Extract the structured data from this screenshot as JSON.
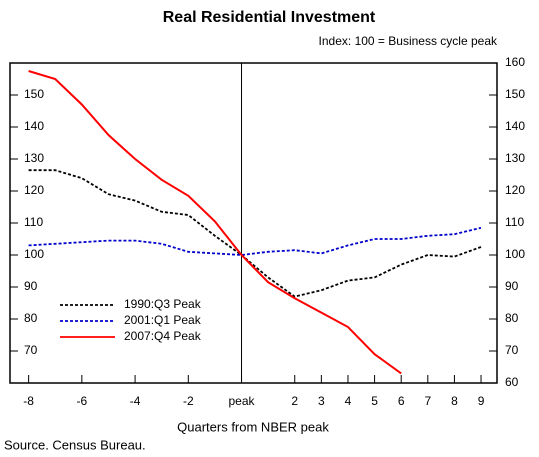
{
  "chart_data": {
    "type": "line",
    "title": "Real Residential Investment",
    "subtitle": "Index: 100 = Business cycle peak",
    "x_label": "Quarters from NBER peak",
    "source": "Source. Census Bureau.",
    "x": [
      -8,
      -7,
      -6,
      -5,
      -4,
      -3,
      -2,
      -1,
      0,
      1,
      2,
      3,
      4,
      5,
      6,
      7,
      8,
      9
    ],
    "series": [
      {
        "name": "1990:Q3 Peak",
        "color": "#000000",
        "linestyle": "dotted",
        "values": [
          126.5,
          126.5,
          124,
          119,
          117,
          113.5,
          112.5,
          106,
          100,
          93,
          87,
          89,
          92,
          93,
          97,
          100,
          99.5,
          102.5
        ]
      },
      {
        "name": "2001:Q1 Peak",
        "color": "#0000cc",
        "linestyle": "dotted",
        "values": [
          103,
          103.5,
          104,
          104.5,
          104.5,
          103.5,
          101,
          100.5,
          100,
          101,
          101.5,
          100.5,
          103,
          105,
          105,
          106,
          106.5,
          108.5
        ]
      },
      {
        "name": "2007:Q4 Peak",
        "color": "#ff0000",
        "linestyle": "solid",
        "values": [
          157.5,
          155,
          147,
          137.5,
          130,
          123.5,
          118.5,
          110.5,
          100,
          91.5,
          86.5,
          82,
          77.5,
          69,
          63,
          null,
          null,
          null
        ]
      }
    ],
    "xlim": [
      -8.7,
      9.6
    ],
    "xticks": [
      -8,
      -6,
      -4,
      -2,
      {
        "value": 0,
        "label": "peak"
      },
      2,
      3,
      4,
      5,
      6,
      7,
      8,
      9
    ],
    "ylim": [
      60,
      160
    ],
    "yticks": [
      60,
      70,
      80,
      90,
      100,
      110,
      120,
      130,
      140,
      150,
      160
    ],
    "grid": false,
    "legend": "lower left"
  }
}
